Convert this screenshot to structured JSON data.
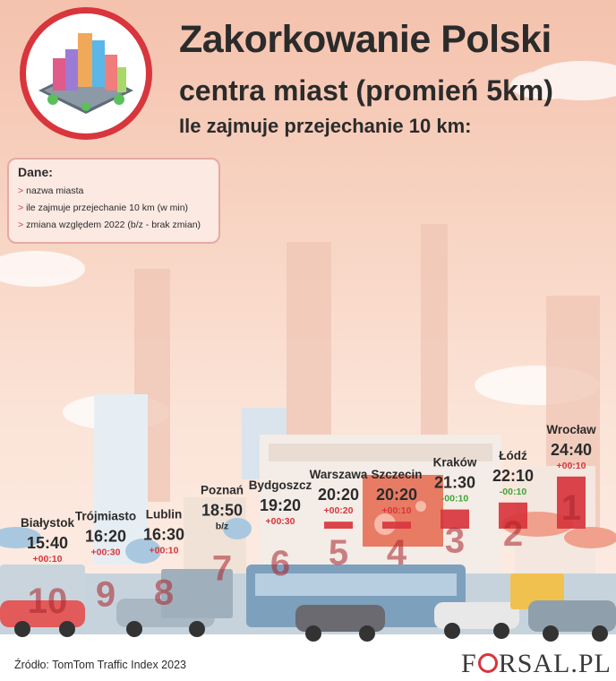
{
  "header": {
    "title": "Zakorkowanie Polski",
    "subtitle": "centra miast (promień 5km)",
    "question": "Ile zajmuje przejechanie 10 km:"
  },
  "legend": {
    "title": "Dane:",
    "items": [
      "nazwa miasta",
      "ile zajmuje przejechanie 10 km (w min)",
      "zmiana względem 2022 (b/z - brak zmian)"
    ]
  },
  "footer": {
    "source": "Źródło: TomTom Traffic Index 2023",
    "brand_pre": "F",
    "brand_post": "RSAL.PL"
  },
  "colors": {
    "bar": "#d8353d",
    "positive_change": "#d8353d",
    "negative_change": "#3fa43a",
    "no_change": "#2b2b2b"
  },
  "chart_data": {
    "type": "bar",
    "categories": [
      "Białystok",
      "Trójmiasto",
      "Lublin",
      "Poznań",
      "Bydgoszcz",
      "Warszawa",
      "Szczecin",
      "Kraków",
      "Łódź",
      "Wrocław"
    ],
    "values": [
      15.67,
      16.33,
      16.5,
      18.83,
      19.33,
      20.33,
      20.33,
      21.5,
      22.17,
      24.67
    ],
    "labels": [
      "15:40",
      "16:20",
      "16:30",
      "18:50",
      "19:20",
      "20:20",
      "20:20",
      "21:30",
      "22:10",
      "24:40"
    ],
    "changes": [
      "+00:10",
      "+00:30",
      "+00:10",
      "b/z",
      "+00:30",
      "+00:20",
      "+00:10",
      "-00:10",
      "-00:10",
      "+00:10"
    ],
    "ranks": [
      "10",
      "9",
      "8",
      "7",
      "6",
      "5",
      "4",
      "3",
      "2",
      "1"
    ]
  }
}
